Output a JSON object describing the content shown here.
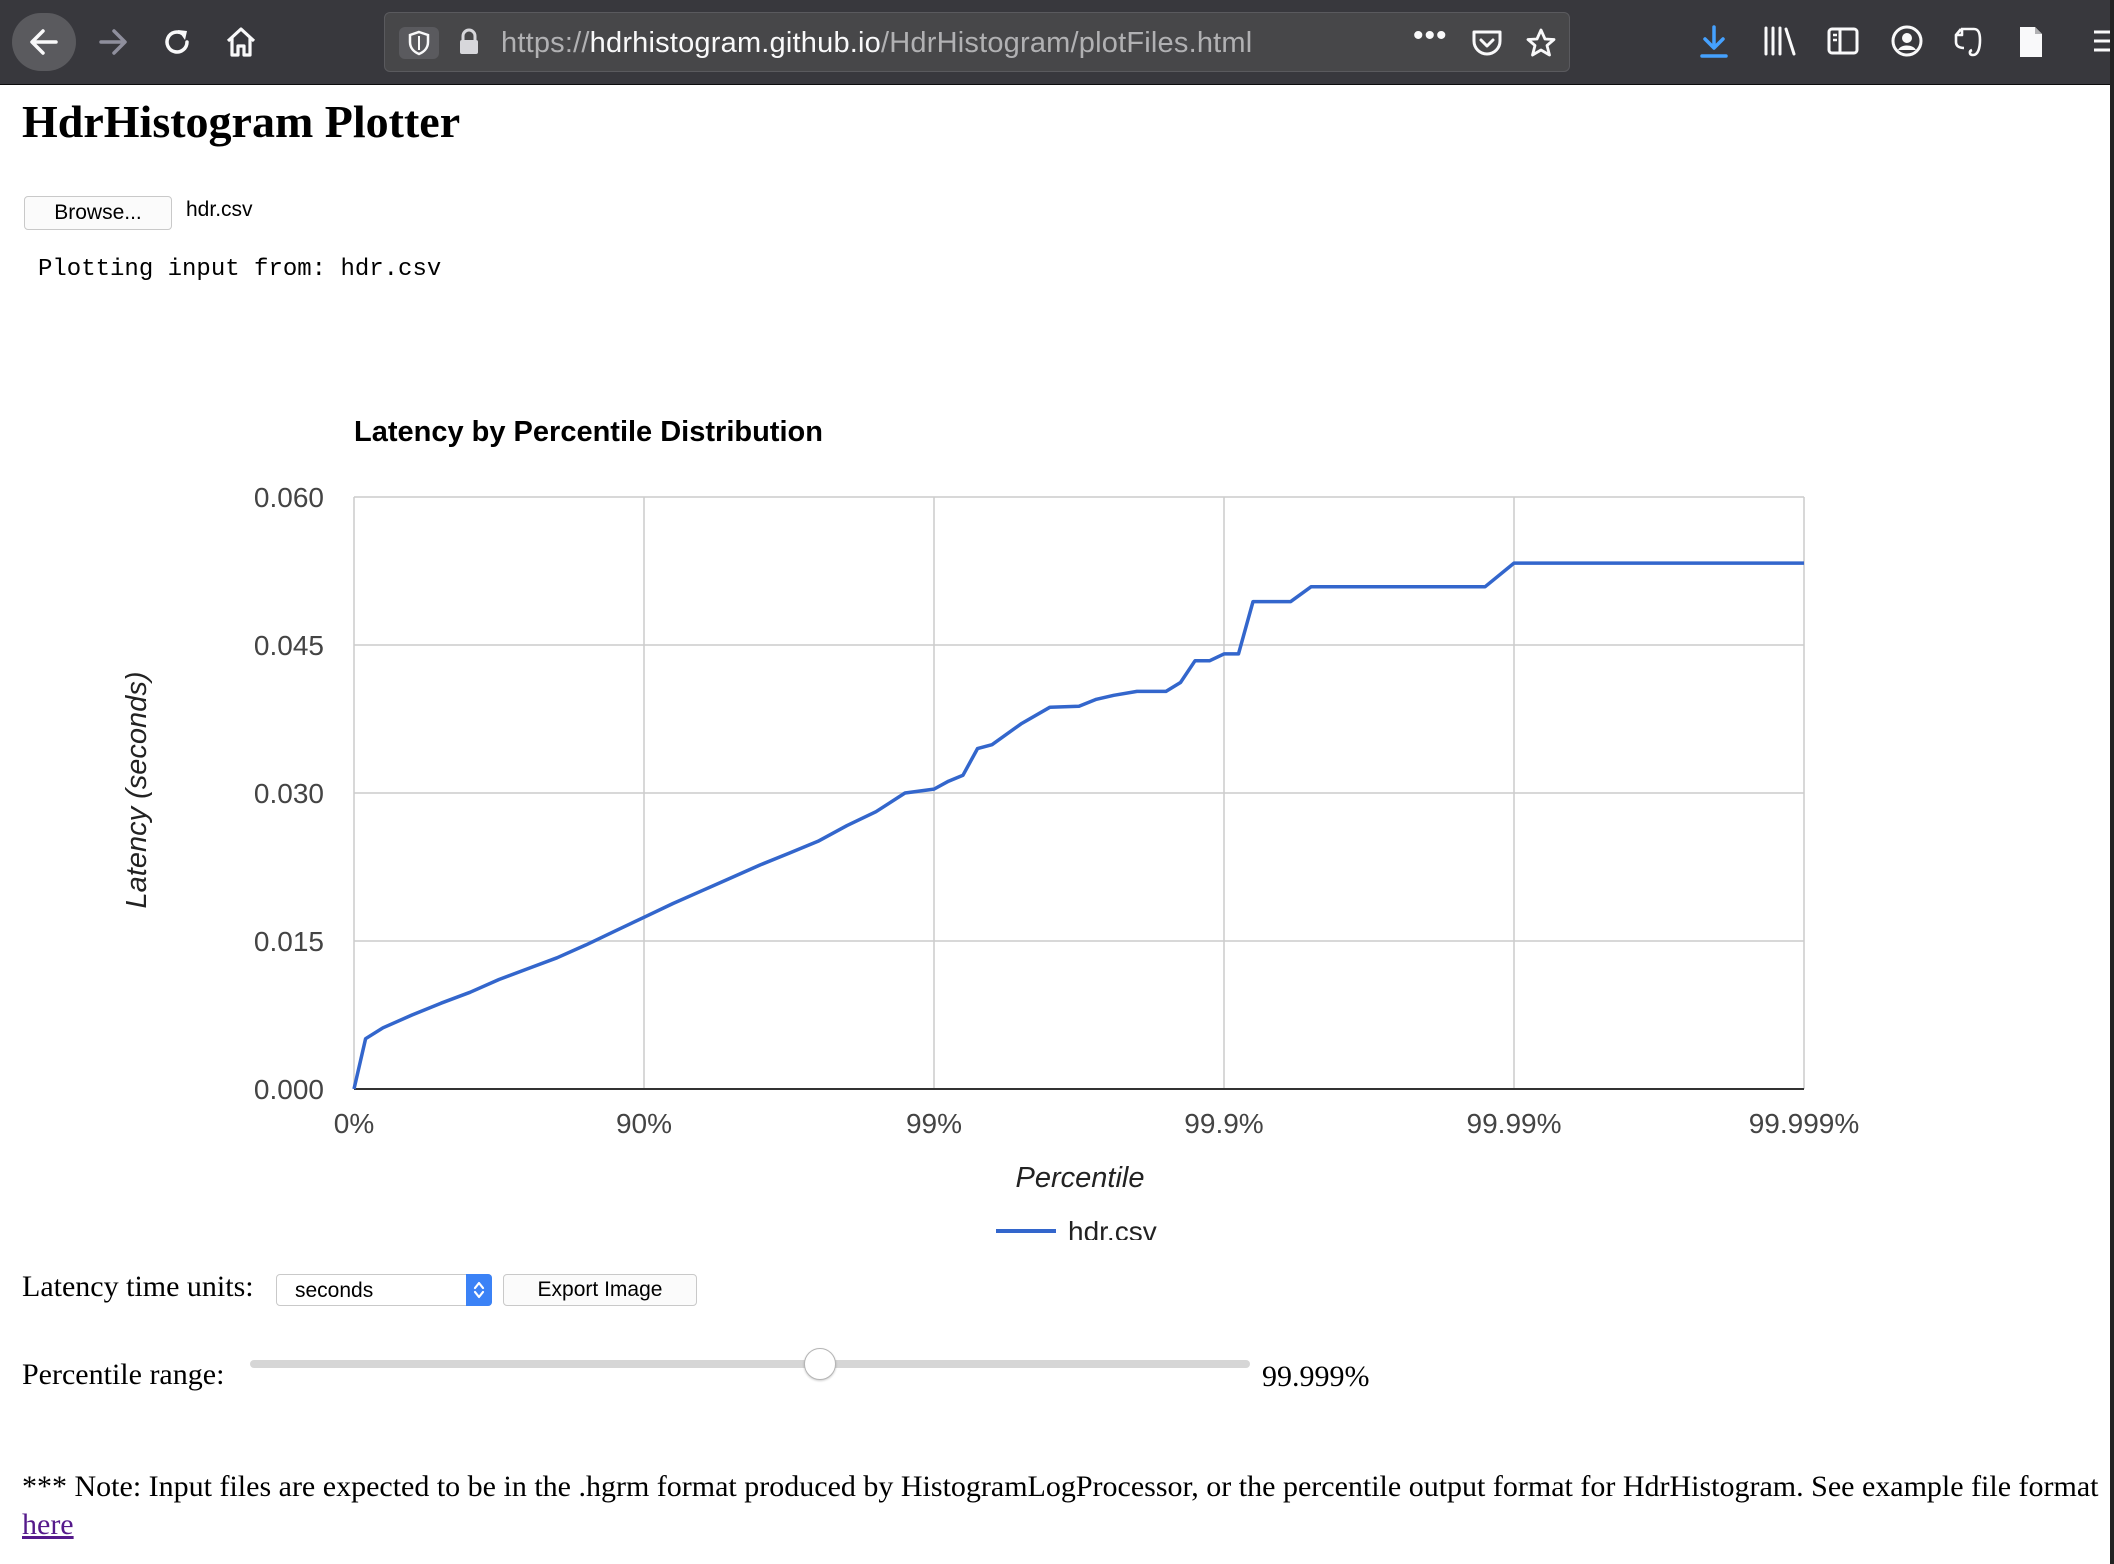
{
  "browser": {
    "url_scheme": "https://",
    "url_host": "hdrhistogram.github.io",
    "url_path": "/HdrHistogram/plotFiles.html",
    "url_more": "•••"
  },
  "page": {
    "title": "HdrHistogram Plotter",
    "browse_label": "Browse...",
    "file_name": "hdr.csv",
    "plot_status": "Plotting input from: hdr.csv"
  },
  "controls": {
    "units_label": "Latency time units:",
    "units_value": "seconds",
    "export_label": "Export Image",
    "range_label": "Percentile range:",
    "range_value": "99.999%",
    "range_fraction": 0.57
  },
  "note": {
    "text": "*** Note: Input files are expected to be in the .hgrm format produced by HistogramLogProcessor, or the percentile output format for HdrHistogram. See example file format ",
    "link": "here"
  },
  "chart_data": {
    "type": "line",
    "title": "Latency by Percentile Distribution",
    "xlabel": "Percentile",
    "ylabel": "Latency (seconds)",
    "x_scale": "log of 1/(1-percentile)",
    "x_ticks": [
      "0%",
      "90%",
      "99%",
      "99.9%",
      "99.99%",
      "99.999%"
    ],
    "y_ticks": [
      "0.000",
      "0.015",
      "0.030",
      "0.045",
      "0.060"
    ],
    "ylim": [
      0,
      0.06
    ],
    "grid": true,
    "legend_position": "bottom",
    "series": [
      {
        "name": "hdr.csv",
        "color": "#3366cc",
        "x_nines": [
          0,
          0.04,
          0.1,
          0.2,
          0.3,
          0.4,
          0.5,
          0.6,
          0.7,
          0.8,
          0.9,
          0.95,
          1.0,
          1.1,
          1.2,
          1.3,
          1.4,
          1.5,
          1.6,
          1.7,
          1.8,
          1.9,
          2.0,
          2.05,
          2.1,
          2.15,
          2.2,
          2.3,
          2.4,
          2.5,
          2.56,
          2.62,
          2.7,
          2.75,
          2.8,
          2.85,
          2.9,
          2.95,
          3.0,
          3.05,
          3.1,
          3.15,
          3.23,
          3.3,
          3.35,
          3.4,
          3.45,
          3.5,
          3.55,
          3.6,
          3.7,
          3.77,
          3.83,
          3.9,
          4.0,
          4.26,
          4.31,
          4.5,
          5.0
        ],
        "y_values": [
          0.0,
          0.0051,
          0.0062,
          0.0075,
          0.0087,
          0.0098,
          0.0111,
          0.0122,
          0.0133,
          0.0146,
          0.016,
          0.0167,
          0.0174,
          0.0188,
          0.0201,
          0.0214,
          0.0227,
          0.0239,
          0.0251,
          0.0267,
          0.0281,
          0.03,
          0.0304,
          0.0312,
          0.0318,
          0.0345,
          0.0349,
          0.037,
          0.0387,
          0.0388,
          0.0395,
          0.0399,
          0.0403,
          0.0403,
          0.0403,
          0.0412,
          0.0434,
          0.0434,
          0.0441,
          0.0441,
          0.0494,
          0.0494,
          0.0494,
          0.0509,
          0.0509,
          0.0509,
          0.0509,
          0.0509,
          0.0509,
          0.0509,
          0.0509,
          0.0509,
          0.0509,
          0.0509,
          0.0533,
          0.0533,
          0.0533,
          0.0533,
          0.0533
        ]
      }
    ]
  }
}
